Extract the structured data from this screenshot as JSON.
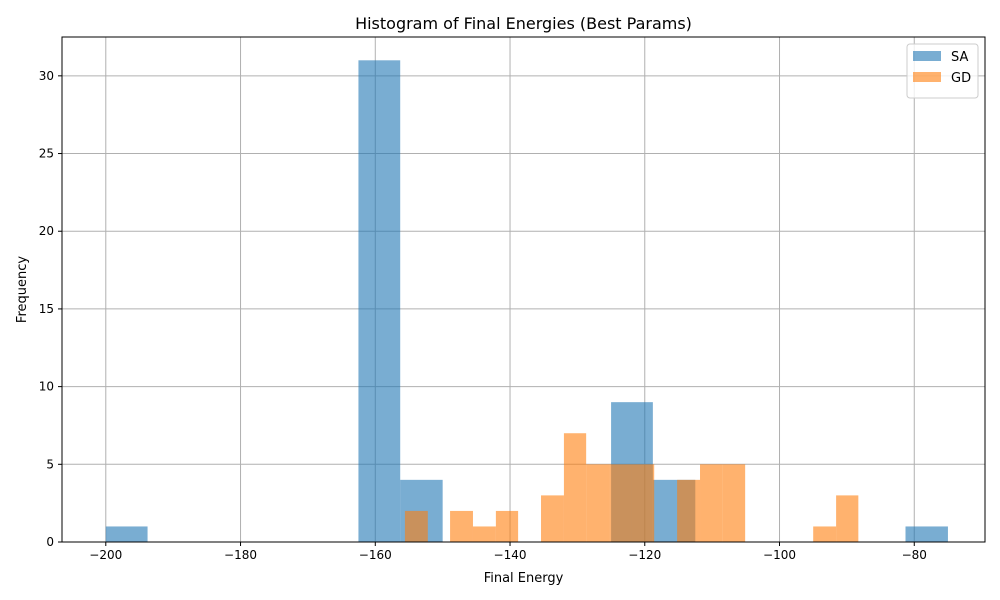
{
  "chart_data": {
    "type": "bar",
    "chart_subtype": "histogram",
    "title": "Histogram of Final Energies (Best Params)",
    "xlabel": "Final Energy",
    "ylabel": "Frequency",
    "xlim": [
      -206.5,
      -69.5
    ],
    "ylim": [
      0,
      32.5
    ],
    "xticks": [
      -200,
      -180,
      -160,
      -140,
      -120,
      -100,
      -80
    ],
    "yticks": [
      0,
      5,
      10,
      15,
      20,
      25,
      30
    ],
    "grid": true,
    "legend_position": "top-right",
    "series": [
      {
        "name": "SA",
        "color": "#1f77b4",
        "opacity": 0.6,
        "bins": [
          {
            "x0": -200.0,
            "x1": -193.8,
            "count": 1
          },
          {
            "x0": -162.5,
            "x1": -156.3,
            "count": 31
          },
          {
            "x0": -156.3,
            "x1": -150.0,
            "count": 4
          },
          {
            "x0": -125.0,
            "x1": -118.8,
            "count": 9
          },
          {
            "x0": -118.8,
            "x1": -112.5,
            "count": 4
          },
          {
            "x0": -81.3,
            "x1": -75.0,
            "count": 1
          }
        ]
      },
      {
        "name": "GD",
        "color": "#ff7f0e",
        "opacity": 0.6,
        "bins": [
          {
            "x0": -155.6,
            "x1": -152.2,
            "count": 2
          },
          {
            "x0": -148.9,
            "x1": -145.5,
            "count": 2
          },
          {
            "x0": -145.5,
            "x1": -142.1,
            "count": 1
          },
          {
            "x0": -142.1,
            "x1": -138.8,
            "count": 2
          },
          {
            "x0": -135.4,
            "x1": -132.0,
            "count": 3
          },
          {
            "x0": -132.0,
            "x1": -128.7,
            "count": 7
          },
          {
            "x0": -128.7,
            "x1": -125.3,
            "count": 5
          },
          {
            "x0": -125.3,
            "x1": -121.9,
            "count": 5
          },
          {
            "x0": -121.9,
            "x1": -118.6,
            "count": 5
          },
          {
            "x0": -115.2,
            "x1": -111.8,
            "count": 4
          },
          {
            "x0": -111.8,
            "x1": -108.5,
            "count": 5
          },
          {
            "x0": -108.5,
            "x1": -105.1,
            "count": 5
          },
          {
            "x0": -95.0,
            "x1": -91.6,
            "count": 1
          },
          {
            "x0": -91.6,
            "x1": -88.3,
            "count": 3
          }
        ]
      }
    ]
  }
}
